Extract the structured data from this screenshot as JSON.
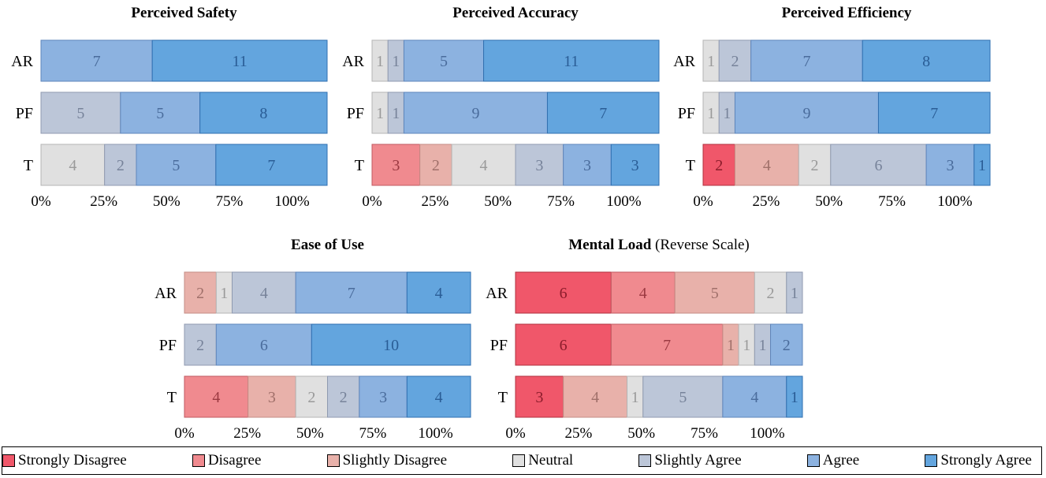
{
  "colors": {
    "Strongly Disagree": "#f0576a",
    "Disagree": "#f08a8f",
    "Slightly Disagree": "#e8b1aa",
    "Neutral": "#e0e0e0",
    "Slightly Agree": "#bcc6d8",
    "Agree": "#8cb2e0",
    "Strongly Agree": "#63a5de"
  },
  "legend": [
    {
      "label": "Strongly Disagree",
      "key": "Strongly Disagree"
    },
    {
      "label": "Disagree",
      "key": "Disagree"
    },
    {
      "label": "Slightly Disagree",
      "key": "Slightly Disagree"
    },
    {
      "label": "Neutral",
      "key": "Neutral"
    },
    {
      "label": "Slightly Agree",
      "key": "Slightly Agree"
    },
    {
      "label": "Agree",
      "key": "Agree"
    },
    {
      "label": "Strongly Agree",
      "key": "Strongly Agree"
    }
  ],
  "chart_data": [
    {
      "type": "bar",
      "orientation": "horizontal-stacked",
      "title": "Perceived Safety",
      "subtitle": "",
      "categories": [
        "AR",
        "PF",
        "T"
      ],
      "xticks": [
        "0%",
        "25%",
        "50%",
        "75%",
        "100%"
      ],
      "xlim": [
        0,
        18
      ],
      "rows": [
        {
          "label": "AR",
          "segments": [
            {
              "level": "Agree",
              "value": 7
            },
            {
              "level": "Strongly Agree",
              "value": 11
            }
          ]
        },
        {
          "label": "PF",
          "segments": [
            {
              "level": "Slightly Agree",
              "value": 5
            },
            {
              "level": "Agree",
              "value": 5
            },
            {
              "level": "Strongly Agree",
              "value": 8
            }
          ]
        },
        {
          "label": "T",
          "segments": [
            {
              "level": "Neutral",
              "value": 4
            },
            {
              "level": "Slightly Agree",
              "value": 2
            },
            {
              "level": "Agree",
              "value": 5
            },
            {
              "level": "Strongly Agree",
              "value": 7
            }
          ]
        }
      ]
    },
    {
      "type": "bar",
      "orientation": "horizontal-stacked",
      "title": "Perceived Accuracy",
      "subtitle": "",
      "categories": [
        "AR",
        "PF",
        "T"
      ],
      "xticks": [
        "0%",
        "25%",
        "50%",
        "75%",
        "100%"
      ],
      "xlim": [
        0,
        18
      ],
      "rows": [
        {
          "label": "AR",
          "segments": [
            {
              "level": "Neutral",
              "value": 1
            },
            {
              "level": "Slightly Agree",
              "value": 1
            },
            {
              "level": "Agree",
              "value": 5
            },
            {
              "level": "Strongly Agree",
              "value": 11
            }
          ]
        },
        {
          "label": "PF",
          "segments": [
            {
              "level": "Neutral",
              "value": 1
            },
            {
              "level": "Slightly Agree",
              "value": 1
            },
            {
              "level": "Agree",
              "value": 9
            },
            {
              "level": "Strongly Agree",
              "value": 7
            }
          ]
        },
        {
          "label": "T",
          "segments": [
            {
              "level": "Disagree",
              "value": 3
            },
            {
              "level": "Slightly Disagree",
              "value": 2
            },
            {
              "level": "Neutral",
              "value": 4
            },
            {
              "level": "Slightly Agree",
              "value": 3
            },
            {
              "level": "Agree",
              "value": 3
            },
            {
              "level": "Strongly Agree",
              "value": 3
            }
          ]
        }
      ]
    },
    {
      "type": "bar",
      "orientation": "horizontal-stacked",
      "title": "Perceived Efficiency",
      "subtitle": "",
      "categories": [
        "AR",
        "PF",
        "T"
      ],
      "xticks": [
        "0%",
        "25%",
        "50%",
        "75%",
        "100%"
      ],
      "xlim": [
        0,
        18
      ],
      "rows": [
        {
          "label": "AR",
          "segments": [
            {
              "level": "Neutral",
              "value": 1
            },
            {
              "level": "Slightly Agree",
              "value": 2
            },
            {
              "level": "Agree",
              "value": 7
            },
            {
              "level": "Strongly Agree",
              "value": 8
            }
          ]
        },
        {
          "label": "PF",
          "segments": [
            {
              "level": "Neutral",
              "value": 1
            },
            {
              "level": "Slightly Agree",
              "value": 1
            },
            {
              "level": "Agree",
              "value": 9
            },
            {
              "level": "Strongly Agree",
              "value": 7
            }
          ]
        },
        {
          "label": "T",
          "segments": [
            {
              "level": "Strongly Disagree",
              "value": 2
            },
            {
              "level": "Slightly Disagree",
              "value": 4
            },
            {
              "level": "Neutral",
              "value": 2
            },
            {
              "level": "Slightly Agree",
              "value": 6
            },
            {
              "level": "Agree",
              "value": 3
            },
            {
              "level": "Strongly Agree",
              "value": 1
            }
          ]
        }
      ]
    },
    {
      "type": "bar",
      "orientation": "horizontal-stacked",
      "title": "Ease of Use",
      "subtitle": "",
      "categories": [
        "AR",
        "PF",
        "T"
      ],
      "xticks": [
        "0%",
        "25%",
        "50%",
        "75%",
        "100%"
      ],
      "xlim": [
        0,
        18
      ],
      "rows": [
        {
          "label": "AR",
          "segments": [
            {
              "level": "Slightly Disagree",
              "value": 2
            },
            {
              "level": "Neutral",
              "value": 1
            },
            {
              "level": "Slightly Agree",
              "value": 4
            },
            {
              "level": "Agree",
              "value": 7
            },
            {
              "level": "Strongly Agree",
              "value": 4
            }
          ]
        },
        {
          "label": "PF",
          "segments": [
            {
              "level": "Slightly Agree",
              "value": 2
            },
            {
              "level": "Agree",
              "value": 6
            },
            {
              "level": "Strongly Agree",
              "value": 10
            }
          ]
        },
        {
          "label": "T",
          "segments": [
            {
              "level": "Disagree",
              "value": 4
            },
            {
              "level": "Slightly Disagree",
              "value": 3
            },
            {
              "level": "Neutral",
              "value": 2
            },
            {
              "level": "Slightly Agree",
              "value": 2
            },
            {
              "level": "Agree",
              "value": 3
            },
            {
              "level": "Strongly Agree",
              "value": 4
            }
          ]
        }
      ]
    },
    {
      "type": "bar",
      "orientation": "horizontal-stacked",
      "title": "Mental Load",
      "subtitle": "(Reverse Scale)",
      "categories": [
        "AR",
        "PF",
        "T"
      ],
      "xticks": [
        "0%",
        "25%",
        "50%",
        "75%",
        "100%"
      ],
      "xlim": [
        0,
        18
      ],
      "rows": [
        {
          "label": "AR",
          "segments": [
            {
              "level": "Strongly Disagree",
              "value": 6
            },
            {
              "level": "Disagree",
              "value": 4
            },
            {
              "level": "Slightly Disagree",
              "value": 5
            },
            {
              "level": "Neutral",
              "value": 2
            },
            {
              "level": "Slightly Agree",
              "value": 1
            }
          ]
        },
        {
          "label": "PF",
          "segments": [
            {
              "level": "Strongly Disagree",
              "value": 6
            },
            {
              "level": "Disagree",
              "value": 7
            },
            {
              "level": "Slightly Disagree",
              "value": 1
            },
            {
              "level": "Neutral",
              "value": 1
            },
            {
              "level": "Slightly Agree",
              "value": 1
            },
            {
              "level": "Agree",
              "value": 2
            }
          ]
        },
        {
          "label": "T",
          "segments": [
            {
              "level": "Strongly Disagree",
              "value": 3
            },
            {
              "level": "Slightly Disagree",
              "value": 4
            },
            {
              "level": "Neutral",
              "value": 1
            },
            {
              "level": "Slightly Agree",
              "value": 5
            },
            {
              "level": "Agree",
              "value": 4
            },
            {
              "level": "Strongly Agree",
              "value": 1
            }
          ]
        }
      ]
    }
  ]
}
